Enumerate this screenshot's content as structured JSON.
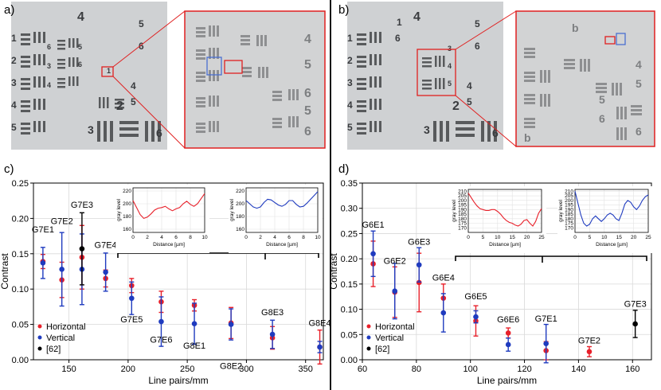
{
  "panel_labels": [
    "a)",
    "b)",
    "c)",
    "d)"
  ],
  "image_a": {
    "numbers": [
      "4",
      "5",
      "6",
      "1",
      "2",
      "3",
      "4",
      "5",
      "6",
      "3",
      "4",
      "5",
      "6",
      "2",
      "3",
      "4",
      "5",
      "6",
      "1"
    ],
    "zoom_numbers": [
      "4",
      "5",
      "6",
      "5",
      "6"
    ]
  },
  "image_b": {
    "numbers": [
      "4",
      "5",
      "1",
      "2",
      "3",
      "4",
      "5",
      "6",
      "3",
      "4",
      "5",
      "6",
      "2",
      "3",
      "4",
      "5",
      "6",
      "1"
    ],
    "zoom_numbers": [
      "b",
      "4",
      "5",
      "6",
      "b",
      "5",
      "6"
    ]
  },
  "colors": {
    "horizontal": "#e8202a",
    "vertical": "#1f3bbf",
    "ref": "#000000",
    "frame": "#e02020",
    "blue_box": "#4a6fd0"
  },
  "chart_data": [
    {
      "type": "scatter",
      "panel": "c)",
      "xlabel": "Line pairs/mm",
      "ylabel": "Contrast",
      "xlim": [
        120,
        365
      ],
      "ylim": [
        0,
        0.25
      ],
      "xticks": [
        150,
        200,
        250,
        300,
        350
      ],
      "yticks": [
        0.0,
        0.05,
        0.1,
        0.15,
        0.2,
        0.25
      ],
      "grid": true,
      "legend_position": "bottom-left",
      "legend": [
        "Horizontal",
        "Vertical",
        "[62]"
      ],
      "series": [
        {
          "name": "Horizontal",
          "color": "#e8202a",
          "points": [
            {
              "x": 128,
              "y": 0.139,
              "err": 0.01
            },
            {
              "x": 144,
              "y": 0.113,
              "err": 0.025
            },
            {
              "x": 161,
              "y": 0.145,
              "err": 0.045
            },
            {
              "x": 181,
              "y": 0.115,
              "err": 0.012
            },
            {
              "x": 203,
              "y": 0.105,
              "err": 0.01
            },
            {
              "x": 228,
              "y": 0.082,
              "err": 0.015
            },
            {
              "x": 256,
              "y": 0.077,
              "err": 0.008
            },
            {
              "x": 287,
              "y": 0.052,
              "err": 0.022
            },
            {
              "x": 322,
              "y": 0.031,
              "err": 0.016
            },
            {
              "x": 362,
              "y": 0.018,
              "err": 0.024
            }
          ]
        },
        {
          "name": "Vertical",
          "color": "#1f3bbf",
          "points": [
            {
              "x": 128,
              "y": 0.137,
              "err": 0.022
            },
            {
              "x": 144,
              "y": 0.128,
              "err": 0.052
            },
            {
              "x": 161,
              "y": 0.128,
              "err": 0.05
            },
            {
              "x": 181,
              "y": 0.124,
              "err": 0.027
            },
            {
              "x": 203,
              "y": 0.087,
              "err": 0.023
            },
            {
              "x": 228,
              "y": 0.054,
              "err": 0.035
            },
            {
              "x": 256,
              "y": 0.051,
              "err": 0.029
            },
            {
              "x": 287,
              "y": 0.05,
              "err": 0.022
            },
            {
              "x": 322,
              "y": 0.036,
              "err": 0.02
            },
            {
              "x": 362,
              "y": 0.018,
              "err": 0.008
            }
          ]
        },
        {
          "name": "[62]",
          "color": "#000000",
          "points": [
            {
              "x": 161,
              "y": 0.157,
              "err": 0.051
            }
          ]
        }
      ],
      "annotations": [
        {
          "text": "G7E1",
          "x": 128,
          "y": 0.18
        },
        {
          "text": "G7E2",
          "x": 144,
          "y": 0.192
        },
        {
          "text": "G7E3",
          "x": 161,
          "y": 0.215
        },
        {
          "text": "G7E4",
          "x": 181,
          "y": 0.158
        },
        {
          "text": "G7E5",
          "x": 203,
          "y": 0.053
        },
        {
          "text": "G7E6",
          "x": 228,
          "y": 0.024
        },
        {
          "text": "G8E1",
          "x": 256,
          "y": 0.016
        },
        {
          "text": "G8E2",
          "x": 287,
          "y": -0.013
        },
        {
          "text": "G8E3",
          "x": 322,
          "y": 0.063
        },
        {
          "text": "G8E4",
          "x": 362,
          "y": 0.048
        }
      ],
      "insets": [
        {
          "xlabel": "Distance [µm]",
          "ylabel": "gray level",
          "xlim": [
            0,
            10
          ],
          "ylim": [
            155,
            225
          ],
          "xticks": [
            0,
            2,
            4,
            6,
            8,
            10
          ],
          "yticks": [
            160,
            180,
            200,
            220
          ],
          "color": "#e8202a",
          "x": [
            0,
            0.5,
            1,
            1.5,
            2,
            2.5,
            3,
            3.5,
            4,
            4.5,
            5,
            5.5,
            6,
            6.5,
            7,
            7.5,
            8,
            8.5,
            9,
            9.5,
            10
          ],
          "y": [
            205,
            194,
            183,
            177,
            179,
            184,
            190,
            193,
            194,
            196,
            192,
            189,
            192,
            194,
            200,
            204,
            199,
            196,
            200,
            208,
            216
          ]
        },
        {
          "xlabel": "Distance [µm]",
          "ylabel": "gray level",
          "xlim": [
            0,
            10
          ],
          "ylim": [
            155,
            225
          ],
          "xticks": [
            0,
            2,
            4,
            6,
            8,
            10
          ],
          "yticks": [
            160,
            180,
            200,
            220
          ],
          "color": "#1f3bbf",
          "x": [
            0,
            0.5,
            1,
            1.5,
            2,
            2.5,
            3,
            3.5,
            4,
            4.5,
            5,
            5.5,
            6,
            6.5,
            7,
            7.5,
            8,
            8.5,
            9,
            9.5,
            10
          ],
          "y": [
            205,
            200,
            195,
            193,
            195,
            202,
            207,
            206,
            202,
            198,
            196,
            199,
            205,
            205,
            199,
            195,
            196,
            201,
            207,
            213,
            219
          ]
        }
      ]
    },
    {
      "type": "scatter",
      "panel": "d)",
      "xlabel": "Line pairs/mm",
      "ylabel": "Contrast",
      "xlim": [
        60,
        167
      ],
      "ylim": [
        0,
        0.35
      ],
      "xticks": [
        60,
        80,
        100,
        120,
        140,
        160
      ],
      "yticks": [
        0.0,
        0.05,
        0.1,
        0.15,
        0.2,
        0.25,
        0.3,
        0.35
      ],
      "grid": true,
      "legend_position": "bottom-left",
      "legend": [
        "Horizontal",
        "Vertical",
        "[62]"
      ],
      "series": [
        {
          "name": "Horizontal",
          "color": "#e8202a",
          "points": [
            {
              "x": 64,
              "y": 0.19,
              "err": 0.045
            },
            {
              "x": 72,
              "y": 0.134,
              "err": 0.05
            },
            {
              "x": 81,
              "y": 0.153,
              "err": 0.058
            },
            {
              "x": 90,
              "y": 0.122,
              "err": 0.028
            },
            {
              "x": 102,
              "y": 0.077,
              "err": 0.03
            },
            {
              "x": 114,
              "y": 0.053,
              "err": 0.01
            },
            {
              "x": 128,
              "y": 0.018,
              "err": 0.018
            },
            {
              "x": 144,
              "y": 0.016,
              "err": 0.01
            }
          ]
        },
        {
          "name": "Vertical",
          "color": "#1f3bbf",
          "points": [
            {
              "x": 64,
              "y": 0.21,
              "err": 0.045
            },
            {
              "x": 72,
              "y": 0.136,
              "err": 0.055
            },
            {
              "x": 81,
              "y": 0.188,
              "err": 0.034
            },
            {
              "x": 90,
              "y": 0.093,
              "err": 0.038
            },
            {
              "x": 102,
              "y": 0.085,
              "err": 0.012
            },
            {
              "x": 114,
              "y": 0.03,
              "err": 0.013
            },
            {
              "x": 128,
              "y": 0.032,
              "err": 0.038
            }
          ]
        },
        {
          "name": "[62]",
          "color": "#000000",
          "points": [
            {
              "x": 161,
              "y": 0.071,
              "err": 0.027
            }
          ]
        }
      ],
      "annotations": [
        {
          "text": "G6E1",
          "x": 64,
          "y": 0.262
        },
        {
          "text": "G6E2",
          "x": 72,
          "y": 0.19
        },
        {
          "text": "G6E3",
          "x": 81,
          "y": 0.228
        },
        {
          "text": "G6E4",
          "x": 90,
          "y": 0.157
        },
        {
          "text": "G6E5",
          "x": 102,
          "y": 0.12
        },
        {
          "text": "G6E6",
          "x": 114,
          "y": 0.074
        },
        {
          "text": "G7E1",
          "x": 128,
          "y": 0.076
        },
        {
          "text": "G7E2",
          "x": 144,
          "y": 0.032
        },
        {
          "text": "G7E3",
          "x": 161,
          "y": 0.105
        }
      ],
      "insets": [
        {
          "xlabel": "Distance [µm]",
          "ylabel": "gray level",
          "xlim": [
            0,
            25
          ],
          "ylim": [
            165,
            212
          ],
          "xticks": [
            0,
            5,
            10,
            15,
            20,
            25
          ],
          "yticks": [
            170,
            175,
            180,
            185,
            190,
            195,
            200,
            205,
            210
          ],
          "color": "#e8202a",
          "x": [
            0,
            1,
            2,
            3,
            4,
            5,
            6,
            7,
            8,
            9,
            10,
            11,
            12,
            13,
            14,
            15,
            16,
            17,
            18,
            19,
            20,
            21,
            22,
            23,
            24,
            25
          ],
          "y": [
            208,
            203,
            198,
            194,
            191,
            190,
            189,
            189,
            190,
            190,
            188,
            185,
            181,
            178,
            176,
            175,
            173,
            172,
            174,
            178,
            179,
            175,
            172,
            177,
            186,
            191
          ]
        },
        {
          "xlabel": "Distance [µm]",
          "ylabel": "gray level",
          "xlim": [
            0,
            25
          ],
          "ylim": [
            165,
            212
          ],
          "xticks": [
            0,
            5,
            10,
            15,
            20,
            25
          ],
          "yticks": [
            170,
            175,
            180,
            185,
            190,
            195,
            200,
            205,
            210
          ],
          "color": "#1f3bbf",
          "x": [
            0,
            1,
            2,
            3,
            4,
            5,
            6,
            7,
            8,
            9,
            10,
            11,
            12,
            13,
            14,
            15,
            16,
            17,
            18,
            19,
            20,
            21,
            22,
            23,
            24,
            25
          ],
          "y": [
            210,
            197,
            184,
            175,
            172,
            174,
            180,
            183,
            180,
            177,
            180,
            184,
            186,
            184,
            180,
            178,
            186,
            196,
            200,
            198,
            193,
            190,
            194,
            200,
            204,
            206
          ]
        }
      ]
    }
  ]
}
